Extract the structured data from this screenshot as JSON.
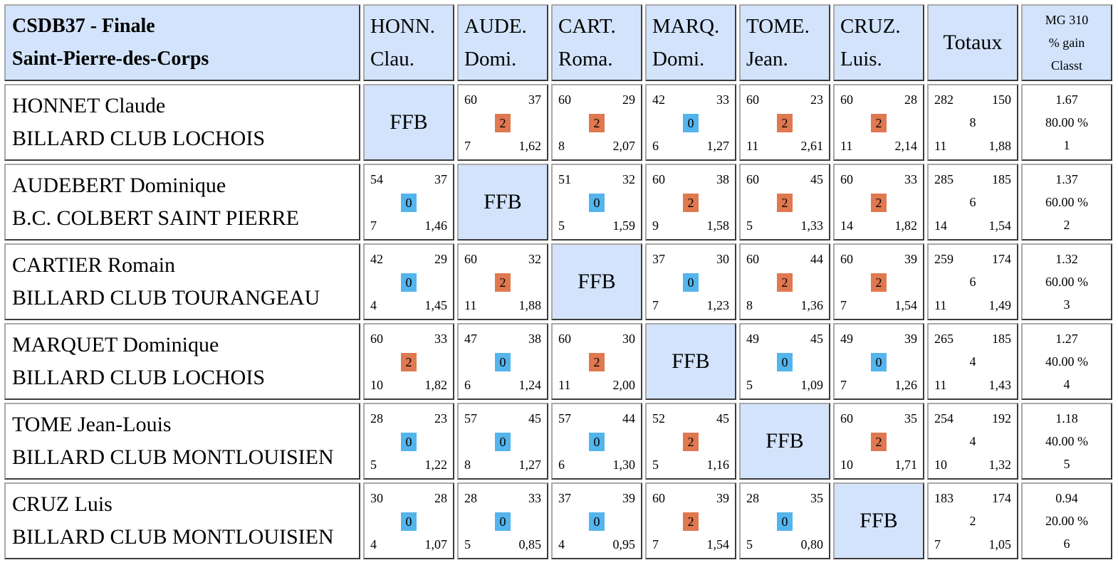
{
  "header": {
    "title_line1": "CSDB37 - Finale",
    "title_line2": "Saint-Pierre-des-Corps",
    "players": [
      {
        "l1": "HONN.",
        "l2": "Clau."
      },
      {
        "l1": "AUDE.",
        "l2": "Domi."
      },
      {
        "l1": "CART.",
        "l2": "Roma."
      },
      {
        "l1": "MARQ.",
        "l2": "Domi."
      },
      {
        "l1": "TOME.",
        "l2": "Jean."
      },
      {
        "l1": "CRUZ.",
        "l2": "Luis."
      }
    ],
    "totals": "Totaux",
    "mg_l1": "MG 310",
    "mg_l2": "% gain",
    "mg_l3": "Classt"
  },
  "ffb_label": "FFB",
  "colors": {
    "header_bg": "#d2e3fb",
    "win_badge": "#e07850",
    "loss_badge": "#54b4ec"
  },
  "rows": [
    {
      "name": "HONNET Claude",
      "club": "BILLARD CLUB LOCHOIS",
      "cells": [
        null,
        {
          "a": "60",
          "b": "37",
          "p": "2",
          "c": "7",
          "d": "1,62"
        },
        {
          "a": "60",
          "b": "29",
          "p": "2",
          "c": "8",
          "d": "2,07"
        },
        {
          "a": "42",
          "b": "33",
          "p": "0",
          "c": "6",
          "d": "1,27"
        },
        {
          "a": "60",
          "b": "23",
          "p": "2",
          "c": "11",
          "d": "2,61"
        },
        {
          "a": "60",
          "b": "28",
          "p": "2",
          "c": "11",
          "d": "2,14"
        }
      ],
      "tot": {
        "a": "282",
        "b": "150",
        "p": "8",
        "c": "11",
        "d": "1,88"
      },
      "mg": {
        "avg": "1.67",
        "pct": "80.00 %",
        "rank": "1"
      }
    },
    {
      "name": "AUDEBERT Dominique",
      "club": "B.C. COLBERT SAINT PIERRE",
      "cells": [
        {
          "a": "54",
          "b": "37",
          "p": "0",
          "c": "7",
          "d": "1,46"
        },
        null,
        {
          "a": "51",
          "b": "32",
          "p": "0",
          "c": "5",
          "d": "1,59"
        },
        {
          "a": "60",
          "b": "38",
          "p": "2",
          "c": "9",
          "d": "1,58"
        },
        {
          "a": "60",
          "b": "45",
          "p": "2",
          "c": "5",
          "d": "1,33"
        },
        {
          "a": "60",
          "b": "33",
          "p": "2",
          "c": "14",
          "d": "1,82"
        }
      ],
      "tot": {
        "a": "285",
        "b": "185",
        "p": "6",
        "c": "14",
        "d": "1,54"
      },
      "mg": {
        "avg": "1.37",
        "pct": "60.00 %",
        "rank": "2"
      }
    },
    {
      "name": "CARTIER Romain",
      "club": "BILLARD CLUB TOURANGEAU",
      "cells": [
        {
          "a": "42",
          "b": "29",
          "p": "0",
          "c": "4",
          "d": "1,45"
        },
        {
          "a": "60",
          "b": "32",
          "p": "2",
          "c": "11",
          "d": "1,88"
        },
        null,
        {
          "a": "37",
          "b": "30",
          "p": "0",
          "c": "7",
          "d": "1,23"
        },
        {
          "a": "60",
          "b": "44",
          "p": "2",
          "c": "8",
          "d": "1,36"
        },
        {
          "a": "60",
          "b": "39",
          "p": "2",
          "c": "7",
          "d": "1,54"
        }
      ],
      "tot": {
        "a": "259",
        "b": "174",
        "p": "6",
        "c": "11",
        "d": "1,49"
      },
      "mg": {
        "avg": "1.32",
        "pct": "60.00 %",
        "rank": "3"
      }
    },
    {
      "name": "MARQUET Dominique",
      "club": "BILLARD CLUB LOCHOIS",
      "cells": [
        {
          "a": "60",
          "b": "33",
          "p": "2",
          "c": "10",
          "d": "1,82"
        },
        {
          "a": "47",
          "b": "38",
          "p": "0",
          "c": "6",
          "d": "1,24"
        },
        {
          "a": "60",
          "b": "30",
          "p": "2",
          "c": "11",
          "d": "2,00"
        },
        null,
        {
          "a": "49",
          "b": "45",
          "p": "0",
          "c": "5",
          "d": "1,09"
        },
        {
          "a": "49",
          "b": "39",
          "p": "0",
          "c": "7",
          "d": "1,26"
        }
      ],
      "tot": {
        "a": "265",
        "b": "185",
        "p": "4",
        "c": "11",
        "d": "1,43"
      },
      "mg": {
        "avg": "1.27",
        "pct": "40.00 %",
        "rank": "4"
      }
    },
    {
      "name": "TOME Jean-Louis",
      "club": "BILLARD CLUB MONTLOUISIEN",
      "cells": [
        {
          "a": "28",
          "b": "23",
          "p": "0",
          "c": "5",
          "d": "1,22"
        },
        {
          "a": "57",
          "b": "45",
          "p": "0",
          "c": "8",
          "d": "1,27"
        },
        {
          "a": "57",
          "b": "44",
          "p": "0",
          "c": "6",
          "d": "1,30"
        },
        {
          "a": "52",
          "b": "45",
          "p": "2",
          "c": "5",
          "d": "1,16"
        },
        null,
        {
          "a": "60",
          "b": "35",
          "p": "2",
          "c": "10",
          "d": "1,71"
        }
      ],
      "tot": {
        "a": "254",
        "b": "192",
        "p": "4",
        "c": "10",
        "d": "1,32"
      },
      "mg": {
        "avg": "1.18",
        "pct": "40.00 %",
        "rank": "5"
      }
    },
    {
      "name": "CRUZ Luis",
      "club": "BILLARD CLUB MONTLOUISIEN",
      "cells": [
        {
          "a": "30",
          "b": "28",
          "p": "0",
          "c": "4",
          "d": "1,07"
        },
        {
          "a": "28",
          "b": "33",
          "p": "0",
          "c": "5",
          "d": "0,85"
        },
        {
          "a": "37",
          "b": "39",
          "p": "0",
          "c": "4",
          "d": "0,95"
        },
        {
          "a": "60",
          "b": "39",
          "p": "2",
          "c": "7",
          "d": "1,54"
        },
        {
          "a": "28",
          "b": "35",
          "p": "0",
          "c": "5",
          "d": "0,80"
        },
        null
      ],
      "tot": {
        "a": "183",
        "b": "174",
        "p": "2",
        "c": "7",
        "d": "1,05"
      },
      "mg": {
        "avg": "0.94",
        "pct": "20.00 %",
        "rank": "6"
      }
    }
  ]
}
